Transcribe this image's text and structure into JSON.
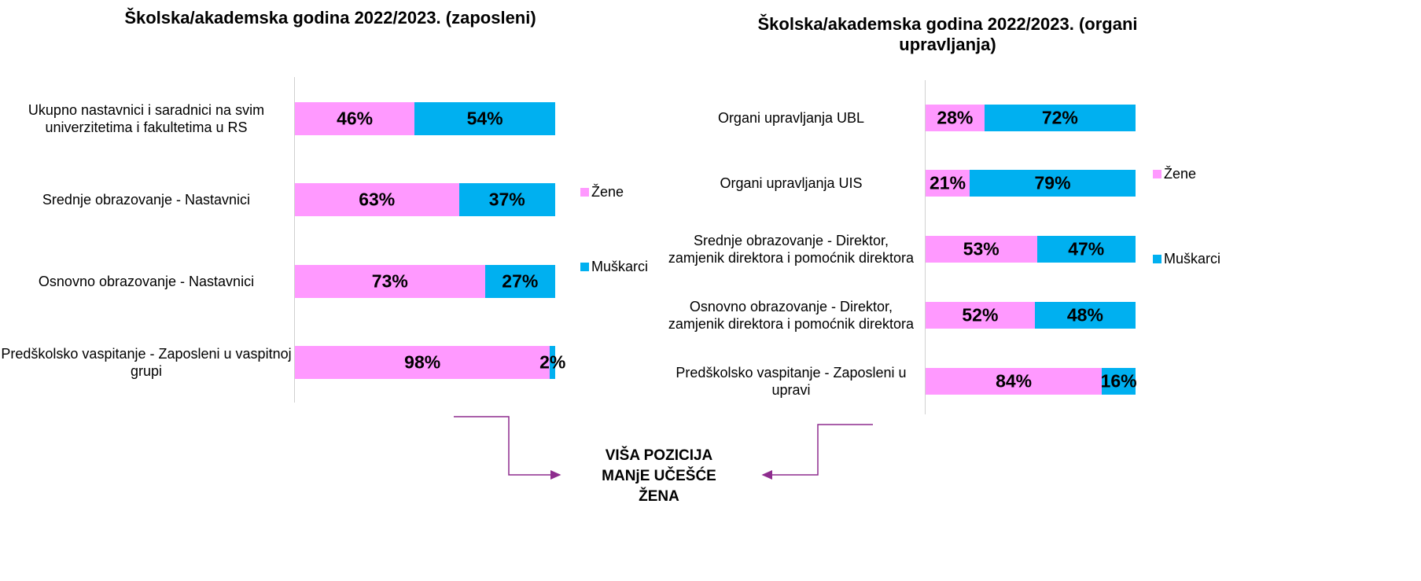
{
  "chart_data": [
    {
      "type": "bar",
      "orientation": "horizontal",
      "stacked": true,
      "title": "Školska/akademska godina 2022/2023. (zaposleni)",
      "categories": [
        "Ukupno nastavnici i saradnici na svim univerzitetima i fakultetima u RS",
        "Srednje obrazovanje - Nastavnici",
        "Osnovno obrazovanje - Nastavnici",
        "Predškolsko vaspitanje  - Zaposleni u vaspitnoj grupi"
      ],
      "series": [
        {
          "name": "Žene",
          "color": "#ff99ff",
          "values": [
            46,
            63,
            73,
            98
          ],
          "value_labels": [
            "46%",
            "63%",
            "73%",
            "98%"
          ]
        },
        {
          "name": "Muškarci",
          "color": "#00b0f0",
          "values": [
            54,
            37,
            27,
            2
          ],
          "value_labels": [
            "54%",
            "37%",
            "27%",
            "2%"
          ]
        }
      ],
      "xlim": [
        0,
        100
      ],
      "legend": "right"
    },
    {
      "type": "bar",
      "orientation": "horizontal",
      "stacked": true,
      "title": "Školska/akademska godina 2022/2023. (organi upravljanja)",
      "categories": [
        "Organi upravljanja UBL",
        "Organi upravljanja UIS",
        "Srednje obrazovanje - Direktor, zamjenik direktora i pomoćnik direktora",
        "Osnovno obrazovanje - Direktor, zamjenik direktora i pomoćnik direktora",
        "Predškolsko vaspitanje  - Zaposleni u upravi"
      ],
      "series": [
        {
          "name": "Žene",
          "color": "#ff99ff",
          "values": [
            28,
            21,
            53,
            52,
            84
          ],
          "value_labels": [
            "28%",
            "21%",
            "53%",
            "52%",
            "84%"
          ]
        },
        {
          "name": "Muškarci",
          "color": "#00b0f0",
          "values": [
            72,
            79,
            47,
            48,
            16
          ],
          "value_labels": [
            "72%",
            "79%",
            "47%",
            "48%",
            "16%"
          ]
        }
      ],
      "xlim": [
        0,
        100
      ],
      "legend": "right"
    }
  ],
  "annotation": [
    "VIŠA POZICIJA",
    "MANjE UČEŠĆE",
    "ŽENA"
  ]
}
